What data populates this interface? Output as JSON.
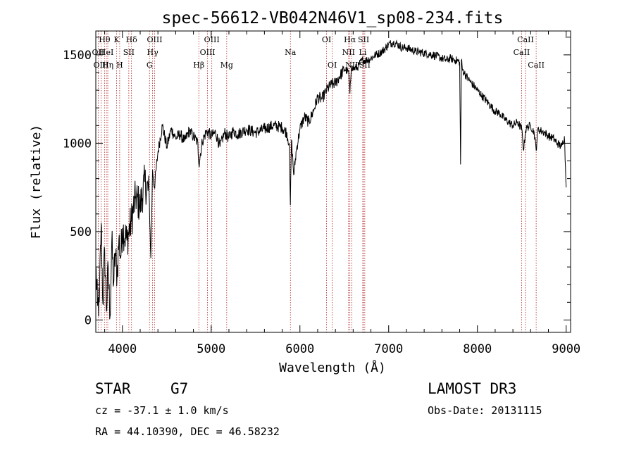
{
  "chart_data": {
    "type": "line",
    "title": "spec-56612-VB042N46V1_sp08-234.fits",
    "xlabel": "Wavelength (Å)",
    "ylabel": "Flux (relative)",
    "xlim": [
      3700,
      9050
    ],
    "ylim": [
      -70,
      1635
    ],
    "x_ticks": [
      4000,
      5000,
      6000,
      7000,
      8000,
      9000
    ],
    "y_ticks": [
      0,
      500,
      1000,
      1500
    ],
    "line_color": "#000000",
    "marker_color": "#b22222",
    "series": [
      {
        "x": [
          3700,
          3720,
          3740,
          3760,
          3780,
          3800,
          3820,
          3840,
          3860,
          3880,
          3900,
          3920,
          3940,
          3960,
          3980,
          4000,
          4050,
          4100,
          4150,
          4200,
          4250,
          4300,
          4320,
          4340,
          4360,
          4400,
          4450,
          4500,
          4550,
          4600,
          4650,
          4700,
          4750,
          4800,
          4850,
          4861,
          4900,
          4950,
          5000,
          5050,
          5100,
          5150,
          5200,
          5250,
          5300,
          5400,
          5500,
          5600,
          5700,
          5800,
          5850,
          5880,
          5892,
          5905,
          5930,
          5960,
          6000,
          6050,
          6100,
          6150,
          6200,
          6250,
          6300,
          6350,
          6400,
          6450,
          6500,
          6550,
          6563,
          6580,
          6600,
          6650,
          6700,
          6750,
          6800,
          6850,
          6900,
          6950,
          7000,
          7050,
          7100,
          7150,
          7200,
          7300,
          7400,
          7500,
          7600,
          7650,
          7700,
          7750,
          7800,
          7810,
          7820,
          7830,
          7850,
          7900,
          7950,
          8000,
          8050,
          8100,
          8150,
          8200,
          8250,
          8300,
          8350,
          8400,
          8450,
          8500,
          8520,
          8542,
          8560,
          8600,
          8640,
          8662,
          8680,
          8720,
          8760,
          8800,
          8850,
          8900,
          8950,
          8980,
          9000
        ],
        "y": [
          300,
          80,
          100,
          550,
          90,
          400,
          50,
          300,
          20,
          450,
          200,
          380,
          250,
          460,
          350,
          520,
          450,
          560,
          700,
          640,
          780,
          720,
          350,
          850,
          750,
          950,
          1100,
          980,
          1080,
          1030,
          1050,
          1010,
          1070,
          1040,
          1000,
          880,
          1010,
          1070,
          1040,
          1060,
          980,
          1060,
          1030,
          1070,
          1050,
          1080,
          1060,
          1080,
          1100,
          1090,
          1060,
          1000,
          650,
          1020,
          820,
          960,
          1080,
          1150,
          1120,
          1180,
          1260,
          1250,
          1300,
          1330,
          1340,
          1380,
          1420,
          1400,
          1280,
          1440,
          1420,
          1430,
          1470,
          1470,
          1480,
          1500,
          1510,
          1530,
          1560,
          1570,
          1560,
          1540,
          1540,
          1520,
          1510,
          1500,
          1480,
          1470,
          1480,
          1470,
          1460,
          880,
          1470,
          1420,
          1400,
          1360,
          1330,
          1300,
          1270,
          1240,
          1210,
          1180,
          1170,
          1140,
          1120,
          1100,
          1120,
          1080,
          960,
          1070,
          1090,
          1100,
          1060,
          960,
          1080,
          1070,
          1060,
          1040,
          1030,
          1000,
          980,
          1040,
          750
        ]
      }
    ],
    "spectral_lines": [
      {
        "label": "Hθ",
        "x": 3798,
        "row": 0
      },
      {
        "label": "OII",
        "x": 3727,
        "row": 1
      },
      {
        "label": "OIII",
        "x": 3760,
        "row": 2
      },
      {
        "label": "HeI",
        "x": 3820,
        "row": 1
      },
      {
        "label": "Hη",
        "x": 3835,
        "row": 2
      },
      {
        "label": "K",
        "x": 3934,
        "row": 0
      },
      {
        "label": "H",
        "x": 3969,
        "row": 2
      },
      {
        "label": "SII",
        "x": 4072,
        "row": 1
      },
      {
        "label": "Hδ",
        "x": 4102,
        "row": 0
      },
      {
        "label": "OIII",
        "x": 4363,
        "row": 0
      },
      {
        "label": "Hγ",
        "x": 4340,
        "row": 1
      },
      {
        "label": "G",
        "x": 4305,
        "row": 2
      },
      {
        "label": "Hβ",
        "x": 4861,
        "row": 2
      },
      {
        "label": "OIII",
        "x": 5007,
        "row": 0
      },
      {
        "label": "OIII",
        "x": 4959,
        "row": 1
      },
      {
        "label": "Mg",
        "x": 5175,
        "row": 2
      },
      {
        "label": "Na",
        "x": 5893,
        "row": 1
      },
      {
        "label": "OI",
        "x": 6300,
        "row": 0
      },
      {
        "label": "OI",
        "x": 6364,
        "row": 2
      },
      {
        "label": "Hα",
        "x": 6563,
        "row": 0
      },
      {
        "label": "NII",
        "x": 6548,
        "row": 1
      },
      {
        "label": "NII",
        "x": 6584,
        "row": 2
      },
      {
        "label": "SII",
        "x": 6717,
        "row": 0
      },
      {
        "label": "Li",
        "x": 6708,
        "row": 1
      },
      {
        "label": "SII",
        "x": 6731,
        "row": 2
      },
      {
        "label": "CaII",
        "x": 8542,
        "row": 0
      },
      {
        "label": "CaII",
        "x": 8498,
        "row": 1
      },
      {
        "label": "CaII",
        "x": 8662,
        "row": 2
      }
    ]
  },
  "info": {
    "object_class": "STAR",
    "subclass": "G7",
    "survey": "LAMOST DR3",
    "cz": "cz = -37.1 ± 1.0 km/s",
    "obs_date": "Obs-Date: 20131115",
    "coords": "RA =  44.10390, DEC =  46.58232"
  }
}
